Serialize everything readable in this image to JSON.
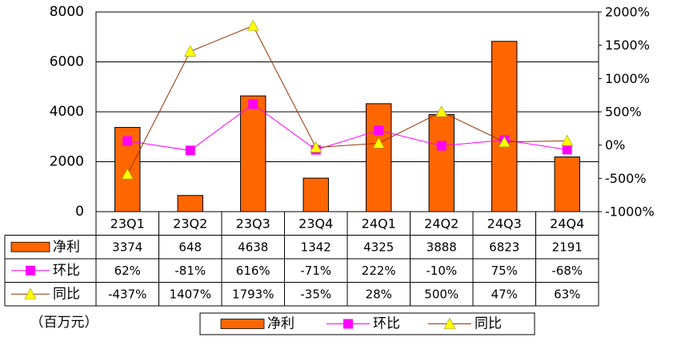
{
  "chart_data": {
    "type": "bar",
    "categories": [
      "23Q1",
      "23Q2",
      "23Q3",
      "23Q4",
      "24Q1",
      "24Q2",
      "24Q3",
      "24Q4"
    ],
    "series": [
      {
        "name": "净利",
        "kind": "bar",
        "axis": "left",
        "values": [
          3374,
          648,
          4638,
          1342,
          4325,
          3888,
          6823,
          2191
        ],
        "labels": [
          "3374",
          "648",
          "4638",
          "1342",
          "4325",
          "3888",
          "6823",
          "2191"
        ],
        "color": "#FF6600"
      },
      {
        "name": "环比",
        "kind": "line",
        "axis": "right",
        "marker": "square",
        "values": [
          62,
          -81,
          616,
          -71,
          222,
          -10,
          75,
          -68
        ],
        "labels": [
          "62%",
          "-81%",
          "616%",
          "-71%",
          "222%",
          "-10%",
          "75%",
          "-68%"
        ],
        "color": "#FF00FF"
      },
      {
        "name": "同比",
        "kind": "line",
        "axis": "right",
        "marker": "triangle",
        "values": [
          -437,
          1407,
          1793,
          -35,
          28,
          500,
          47,
          63
        ],
        "labels": [
          "-437%",
          "1407%",
          "1793%",
          "-35%",
          "28%",
          "500%",
          "47%",
          "63%"
        ],
        "color": "#993300",
        "markerColor": "#FFFF00"
      }
    ],
    "ylim_left": [
      0,
      8000
    ],
    "yticks_left": [
      "0",
      "2000",
      "4000",
      "6000",
      "8000"
    ],
    "ylim_right": [
      -1000,
      2000
    ],
    "yticks_right": [
      "-1000%",
      "-500%",
      "0%",
      "500%",
      "1000%",
      "1500%",
      "2000%"
    ],
    "unit_note": "（百万元）",
    "grid": true,
    "legend": "bottom",
    "data_table": true
  }
}
